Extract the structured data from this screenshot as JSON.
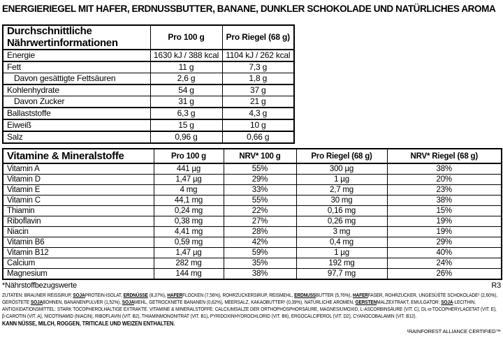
{
  "page": {
    "title": "ENERGIERIEGEL MIT HAFER, ERDNUSSBUTTER, BANANE, DUNKLER SCHOKOLADE UND NATÜRLICHES AROMA"
  },
  "nutrition_table": {
    "header": [
      "Durchschnittliche Nährwertinformationen",
      "Pro 100 g",
      "Pro Riegel (68 g)"
    ],
    "rows": [
      {
        "label": "Energie",
        "per100": "1630 kJ / 388 kcal",
        "perBar": "1104 kJ / 262 kcal",
        "indent": false
      },
      {
        "label": "Fett",
        "per100": "11 g",
        "perBar": "7,3 g",
        "indent": false
      },
      {
        "label": "Davon gesättigte Fettsäuren",
        "per100": "2,6 g",
        "perBar": "1,8 g",
        "indent": true
      },
      {
        "label": "Kohlenhydrate",
        "per100": "54 g",
        "perBar": "37 g",
        "indent": false
      },
      {
        "label": "Davon Zucker",
        "per100": "31 g",
        "perBar": "21 g",
        "indent": true
      },
      {
        "label": "Ballaststoffe",
        "per100": "6,3 g",
        "perBar": "4,3 g",
        "indent": false
      },
      {
        "label": "Eiweiß",
        "per100": "15 g",
        "perBar": "10 g",
        "indent": false
      },
      {
        "label": "Salz",
        "per100": "0,96 g",
        "perBar": "0,66 g",
        "indent": false
      }
    ]
  },
  "vitamins_table": {
    "header": [
      "Vitamine & Mineralstoffe",
      "Pro 100 g",
      "NRV* 100 g",
      "Pro Riegel (68 g)",
      "NRV* Riegel (68 g)"
    ],
    "rows": [
      [
        "Vitamin A",
        "441 µg",
        "55%",
        "300 µg",
        "38%"
      ],
      [
        "Vitamin D",
        "1,47 µg",
        "29%",
        "1 µg",
        "20%"
      ],
      [
        "Vitamin E",
        "4 mg",
        "33%",
        "2,7 mg",
        "23%"
      ],
      [
        "Vitamin C",
        "44,1 mg",
        "55%",
        "30 mg",
        "38%"
      ],
      [
        "Thiamin",
        "0,24 mg",
        "22%",
        "0,16 mg",
        "15%"
      ],
      [
        "Riboflavin",
        "0,38 mg",
        "27%",
        "0,26 mg",
        "19%"
      ],
      [
        "Niacin",
        "4,41 mg",
        "28%",
        "3 mg",
        "19%"
      ],
      [
        "Vitamin B6",
        "0,59 mg",
        "42%",
        "0,4 mg",
        "29%"
      ],
      [
        "Vitamin B12",
        "1,47 µg",
        "59%",
        "1 µg",
        "40%"
      ],
      [
        "Calcium",
        "282 mg",
        "35%",
        "192 mg",
        "24%"
      ],
      [
        "Magnesium",
        "144 mg",
        "38%",
        "97,7 mg",
        "26%"
      ]
    ]
  },
  "footnote": {
    "left": "*Nährstoffbezugswerte",
    "right": "R3"
  },
  "ingredients": {
    "segments": [
      {
        "t": "ZUTATEN: BRAUNER REISSIRUP, ",
        "allergen": false
      },
      {
        "t": "SOJA",
        "allergen": true
      },
      {
        "t": "PROTEIN-ISOLAT, ",
        "allergen": false
      },
      {
        "t": "ERDNÜSSE",
        "allergen": true
      },
      {
        "t": " (8,37%), ",
        "allergen": false
      },
      {
        "t": "HAFER",
        "allergen": true
      },
      {
        "t": "FLOCKEN (7,56%), ROHRZUCKERSIRUP, REISMEHL, ",
        "allergen": false
      },
      {
        "t": "ERDNUSS",
        "allergen": true
      },
      {
        "t": "BUTTER (5,76%), ",
        "allergen": false
      },
      {
        "t": "HAFER",
        "allergen": true
      },
      {
        "t": "FASER, ROHRZUCKER, UNGESÜßTE SCHOKOLADE¹ (2,60%), GERÖSTETE ",
        "allergen": false
      },
      {
        "t": "SOJA",
        "allergen": true
      },
      {
        "t": "BOHNEN, BANANENPULVER (1,52%), ",
        "allergen": false
      },
      {
        "t": "SOJA",
        "allergen": true
      },
      {
        "t": "MEHL, GETROCKNETE BANANEN (0,62%), MEERSALZ, KAKAOBUTTER¹ (0,39%), NATÜRLICHE AROMEN, ",
        "allergen": false
      },
      {
        "t": "GERSTEN",
        "allergen": true
      },
      {
        "t": "MALZEXTRAKT, EMULGATOR: ",
        "allergen": false
      },
      {
        "t": "SOJA",
        "allergen": true
      },
      {
        "t": "-LECITHIN, ANTIOXIDATIONSMITTEL: STARK TOCOPHEROLHALTIGE EXTRAKTE. VITAMINE & MINERALSTOFFE: CALCIUMSALZE DER ORTHOPHOSPHORSÄURE, MAGNESIUMOXID, L-ASCORBINSÄURE (VIT. C), DL-α-TOCOPHERYLACETAT (VIT. E), β-CAROTIN (VIT. A), NICOTINAMID (NIACIN), RIBOFLAVIN (VIT. B2), THIAMINMONONITRAT (VIT. B1), PYRIDOXINHYDROCHLORID (VIT. B6), ERGOCALCIFEROL (VIT. D2), CYANOCOBALAMIN (VIT. B12).",
        "allergen": false
      }
    ]
  },
  "allergen_note": "KANN NÜSSE, MILCH, ROGGEN, TRITICALE UND WEIZEN ENTHALTEN.",
  "certification": "¹RAINFOREST ALLIANCE CERTIFIED™"
}
